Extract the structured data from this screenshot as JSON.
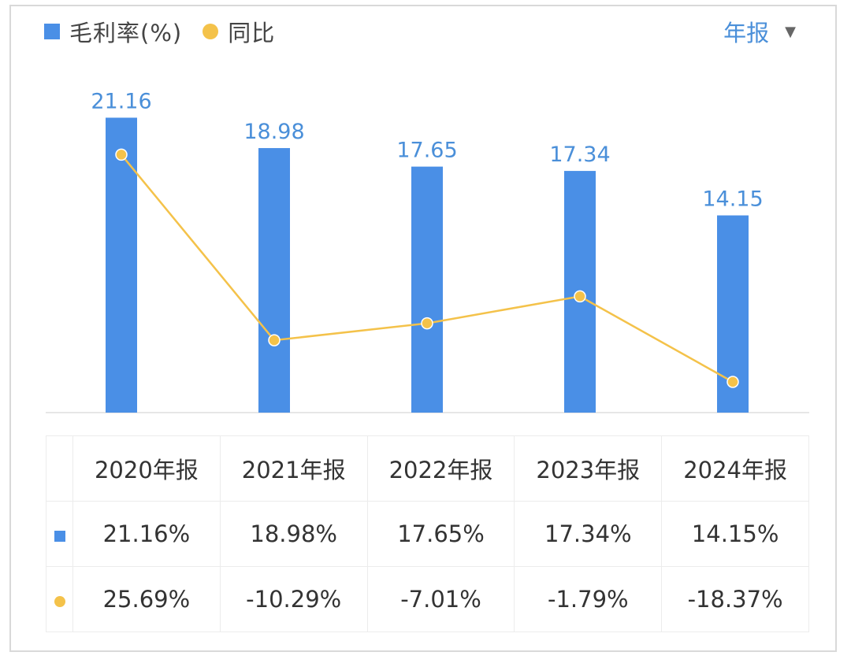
{
  "legend": {
    "bar_label": "毛利率(%)",
    "line_label": "同比"
  },
  "period_selector": {
    "label": "年报"
  },
  "colors": {
    "bar": "#4a8fe6",
    "line": "#f4c24a",
    "positive": "#e05a4f",
    "negative": "#2fa37a",
    "bar_value_text": "#4a8fd9"
  },
  "chart_data": {
    "type": "bar",
    "categories": [
      "2020年报",
      "2021年报",
      "2022年报",
      "2023年报",
      "2024年报"
    ],
    "series": [
      {
        "name": "毛利率(%)",
        "type": "bar",
        "values": [
          21.16,
          18.98,
          17.65,
          17.34,
          14.15
        ]
      },
      {
        "name": "同比",
        "type": "line",
        "values": [
          25.69,
          -10.29,
          -7.01,
          -1.79,
          -18.37
        ]
      }
    ],
    "bar_labels": [
      "21.16",
      "18.98",
      "17.65",
      "17.34",
      "14.15"
    ],
    "legend_position": "top-left",
    "grid": false
  },
  "table": {
    "headers": [
      "2020年报",
      "2021年报",
      "2022年报",
      "2023年报",
      "2024年报"
    ],
    "margin_row": [
      "21.16%",
      "18.98%",
      "17.65%",
      "17.34%",
      "14.15%"
    ],
    "yoy_row": [
      "25.69%",
      "-10.29%",
      "-7.01%",
      "-1.79%",
      "-18.37%"
    ]
  }
}
